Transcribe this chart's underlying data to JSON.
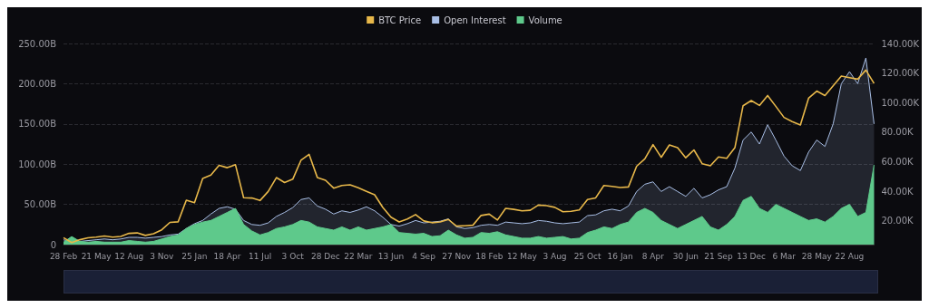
{
  "chart_data": {
    "type": "line",
    "categories": [
      "28 Feb",
      null,
      null,
      null,
      "21 May",
      null,
      null,
      null,
      "12 Aug",
      null,
      null,
      null,
      "3 Nov",
      null,
      null,
      null,
      "25 Jan",
      null,
      null,
      null,
      "18 Apr",
      null,
      null,
      null,
      "11 Jul",
      null,
      null,
      null,
      "3 Oct",
      null,
      null,
      null,
      "28 Dec",
      null,
      null,
      null,
      "22 Mar",
      null,
      null,
      null,
      "13 Jun",
      null,
      null,
      null,
      "4 Sep",
      null,
      null,
      null,
      "27 Nov",
      null,
      null,
      null,
      "18 Feb",
      null,
      null,
      null,
      "12 May",
      null,
      null,
      null,
      "3 Aug",
      null,
      null,
      null,
      "25 Oct",
      null,
      null,
      null,
      "16 Jan",
      null,
      null,
      null,
      "8 Apr",
      null,
      null,
      null,
      "30 Jun",
      null,
      null,
      null,
      "21 Sep",
      null,
      null,
      null,
      "13 Dec",
      null,
      null,
      null,
      "6 Mar",
      null,
      null,
      null,
      "28 May",
      null,
      null,
      null,
      "22 Aug",
      null,
      null,
      null
    ],
    "series": [
      {
        "name": "BTC Price",
        "axis": "y2",
        "color": "#e8b84a",
        "values": [
          8.7,
          5.4,
          7.3,
          8.6,
          9.1,
          9.8,
          9.1,
          9.5,
          11.6,
          11.9,
          10.2,
          11.4,
          14,
          19,
          19.4,
          34,
          32.3,
          48.7,
          51,
          57.6,
          56,
          58,
          35.7,
          35.5,
          33.8,
          39.9,
          49.3,
          46,
          48.2,
          61,
          65,
          49.4,
          47.5,
          42.2,
          44,
          44.4,
          42.4,
          40,
          37.7,
          29.1,
          22.5,
          19.3,
          21.3,
          24.3,
          20,
          18.8,
          19.3,
          21,
          16.5,
          16.7,
          17.1,
          23.7,
          24.6,
          20.6,
          28.5,
          27.8,
          26.8,
          27.2,
          30.7,
          30.3,
          29.2,
          26.2,
          26.5,
          27.4,
          34.5,
          35.6,
          44,
          43.4,
          42.6,
          43,
          57,
          62,
          71.6,
          63,
          71.4,
          69.6,
          62.7,
          68,
          58.7,
          57.3,
          63.3,
          62.4,
          69.5,
          97.9,
          101.4,
          98.1,
          104.8,
          97.5,
          90,
          87.2,
          84.9,
          103,
          107.8,
          104.8,
          111.3,
          118,
          116.9,
          115.9,
          122,
          113
        ]
      },
      {
        "name": "Open Interest",
        "type": "area",
        "color": "#a9bfe6",
        "values": [
          6,
          3,
          4,
          5,
          6,
          7,
          6,
          7,
          9,
          9,
          8,
          9,
          10,
          12,
          13,
          20,
          26,
          30,
          38,
          45,
          47,
          44,
          30,
          25,
          24,
          27,
          35,
          40,
          46,
          56,
          58,
          48,
          44,
          38,
          42,
          40,
          43,
          47,
          42,
          34,
          25,
          23,
          26,
          30,
          27,
          28,
          29,
          32,
          22,
          20,
          21,
          24,
          25,
          24,
          28,
          27,
          26,
          27,
          30,
          29,
          27,
          26,
          27,
          28,
          36,
          37,
          42,
          44,
          42,
          48,
          66,
          75,
          78,
          66,
          72,
          66,
          60,
          70,
          58,
          62,
          68,
          72,
          95,
          130,
          140,
          125,
          149,
          130,
          110,
          98,
          92,
          115,
          130,
          122,
          150,
          200,
          215,
          200,
          232,
          150
        ]
      },
      {
        "name": "Volume",
        "type": "area",
        "color": "#5ec98b",
        "values": [
          3,
          10,
          4,
          3,
          4,
          3,
          3,
          3,
          5,
          4,
          3,
          4,
          7,
          10,
          12,
          20,
          25,
          28,
          30,
          35,
          40,
          45,
          25,
          17,
          12,
          15,
          20,
          22,
          25,
          30,
          28,
          22,
          20,
          18,
          22,
          18,
          22,
          18,
          20,
          22,
          25,
          15,
          14,
          13,
          14,
          10,
          11,
          18,
          12,
          8,
          9,
          15,
          14,
          16,
          12,
          10,
          8,
          8,
          10,
          8,
          9,
          10,
          7,
          8,
          15,
          18,
          22,
          20,
          25,
          28,
          40,
          45,
          40,
          30,
          25,
          20,
          25,
          30,
          35,
          22,
          18,
          25,
          35,
          55,
          60,
          45,
          40,
          50,
          45,
          40,
          35,
          30,
          32,
          28,
          35,
          45,
          50,
          35,
          40,
          99
        ]
      }
    ],
    "ylim": [
      0,
      250
    ],
    "yticks": [
      0,
      {
        "value": 50,
        "label": "50.00B"
      },
      {
        "value": 100,
        "label": "100.00B"
      },
      {
        "value": 150,
        "label": "150.00B"
      },
      {
        "value": 200,
        "label": "200.00B"
      },
      {
        "value": 250,
        "label": "250.00B"
      }
    ],
    "y2lim": [
      4,
      140
    ],
    "y2ticks": [
      {
        "value": 20,
        "label": "20.00K"
      },
      {
        "value": 40,
        "label": "40.00K"
      },
      {
        "value": 60,
        "label": "60.00K"
      },
      {
        "value": 80,
        "label": "80.00K"
      },
      {
        "value": 100,
        "label": "100.00K"
      },
      {
        "value": 120,
        "label": "120.00K"
      },
      {
        "value": 140,
        "label": "140.00K"
      }
    ],
    "grid": "y",
    "legend": "top",
    "marker": "none"
  }
}
